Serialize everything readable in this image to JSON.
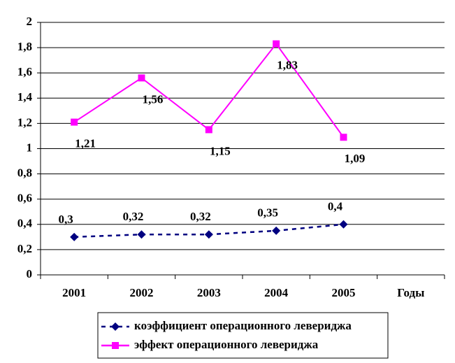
{
  "chart_data": {
    "type": "line",
    "categories": [
      "2001",
      "2002",
      "2003",
      "2004",
      "2005"
    ],
    "x_label": "Годы",
    "series": [
      {
        "name": "коэффициент операционного левериджа",
        "color": "#000080",
        "line_style": "dashed",
        "marker": "diamond",
        "values": [
          0.3,
          0.32,
          0.32,
          0.35,
          0.4
        ],
        "value_labels": [
          "0,3",
          "0,32",
          "0,32",
          "0,35",
          "0,4"
        ]
      },
      {
        "name": "эффект операционного левериджа",
        "color": "#ff00ff",
        "line_style": "solid",
        "marker": "square",
        "values": [
          1.21,
          1.56,
          1.15,
          1.83,
          1.09
        ],
        "value_labels": [
          "1,21",
          "1,56",
          "1,15",
          "1,83",
          "1,09"
        ]
      }
    ],
    "ylim": [
      0,
      2
    ],
    "yticks": [
      0,
      {
        "value": 0.2,
        "label": "0,2"
      },
      {
        "value": 0.4,
        "label": "0,4"
      },
      {
        "value": 0.6,
        "label": "0,6"
      },
      {
        "value": 0.8,
        "label": "0,8"
      },
      1,
      {
        "value": 1.2,
        "label": "1,2"
      },
      {
        "value": 1.4,
        "label": "1,4"
      },
      {
        "value": 1.6,
        "label": "1,6"
      },
      {
        "value": 1.8,
        "label": "1,8"
      },
      2
    ],
    "grid": true,
    "legend": "bottom"
  }
}
